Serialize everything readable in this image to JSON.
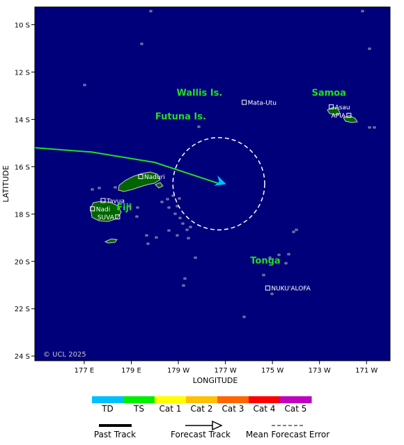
{
  "map": {
    "x_axis": {
      "label": "LONGITUDE",
      "ticks": [
        {
          "lon": 177,
          "label": "177 E"
        },
        {
          "lon": 179,
          "label": "179 E"
        },
        {
          "lon": 181,
          "label": "179 W"
        },
        {
          "lon": 183,
          "label": "177 W"
        },
        {
          "lon": 185,
          "label": "175 W"
        },
        {
          "lon": 187,
          "label": "173 W"
        },
        {
          "lon": 189,
          "label": "171 W"
        }
      ]
    },
    "y_axis": {
      "label": "LATITUDE",
      "ticks": [
        {
          "lat": -10,
          "label": "10 S"
        },
        {
          "lat": -12,
          "label": "12 S"
        },
        {
          "lat": -14,
          "label": "14 S"
        },
        {
          "lat": -16,
          "label": "16 S"
        },
        {
          "lat": -18,
          "label": "18 S"
        },
        {
          "lat": -20,
          "label": "20 S"
        },
        {
          "lat": -22,
          "label": "22 S"
        },
        {
          "lat": -24,
          "label": "24 S"
        }
      ]
    },
    "extent": {
      "lon_min": 174.9,
      "lon_max": 190.0,
      "lat_max": -9.25,
      "lat_min": -24.2
    },
    "copyright": "© UCL 2025",
    "ocean_color": "#00007a",
    "land_color": "#006400",
    "coast_color": "#c8c8c8",
    "region_labels": [
      {
        "text": "Wallis Is.",
        "lon": 181.9,
        "lat": -13.0
      },
      {
        "text": "Futuna Is.",
        "lon": 181.1,
        "lat": -14.0
      },
      {
        "text": "Samoa",
        "lon": 187.4,
        "lat": -13.0
      },
      {
        "text": "Fiji",
        "lon": 178.7,
        "lat": -17.85
      },
      {
        "text": "Tonga",
        "lon": 184.7,
        "lat": -20.1
      }
    ],
    "places": [
      {
        "name": "Mata-Utu",
        "lon": 183.8,
        "lat": -13.28,
        "side": "right"
      },
      {
        "name": "Asau",
        "lon": 187.5,
        "lat": -13.47,
        "side": "right"
      },
      {
        "name": "APIA",
        "lon": 188.25,
        "lat": -13.83,
        "side": "left"
      },
      {
        "name": "Naduri",
        "lon": 179.4,
        "lat": -16.42,
        "side": "right"
      },
      {
        "name": "Tavua",
        "lon": 177.8,
        "lat": -17.43,
        "side": "right"
      },
      {
        "name": "Nadi",
        "lon": 177.35,
        "lat": -17.78,
        "side": "right"
      },
      {
        "name": "SUVA",
        "lon": 178.42,
        "lat": -18.12,
        "side": "left"
      },
      {
        "name": "NUKU'ALOFA",
        "lon": 184.8,
        "lat": -21.13,
        "side": "right"
      }
    ]
  },
  "storm": {
    "past_track": [],
    "forecast_track": [
      {
        "lon": 174.9,
        "lat": -15.2
      },
      {
        "lon": 177.3,
        "lat": -15.38
      },
      {
        "lon": 180.0,
        "lat": -15.82
      },
      {
        "lon": 182.75,
        "lat": -16.72
      }
    ],
    "current_position": {
      "lon": 182.75,
      "lat": -16.72
    },
    "forecast_error": {
      "center_lon": 182.72,
      "center_lat": -16.72,
      "radius_deg": 1.95
    },
    "track_color": "#22dd22",
    "arrow_color": "#00bfff"
  },
  "legend": {
    "categories": [
      {
        "label": "TD",
        "color": "#00bfff"
      },
      {
        "label": "TS",
        "color": "#00ee00"
      },
      {
        "label": "Cat 1",
        "color": "#ffff00"
      },
      {
        "label": "Cat 2",
        "color": "#ffc000"
      },
      {
        "label": "Cat 3",
        "color": "#ff6600"
      },
      {
        "label": "Cat 4",
        "color": "#ff0000"
      },
      {
        "label": "Cat 5",
        "color": "#c000c0"
      }
    ],
    "past_track_label": "Past Track",
    "forecast_track_label": "Forecast Track",
    "error_label": "Mean Forecast Error"
  }
}
